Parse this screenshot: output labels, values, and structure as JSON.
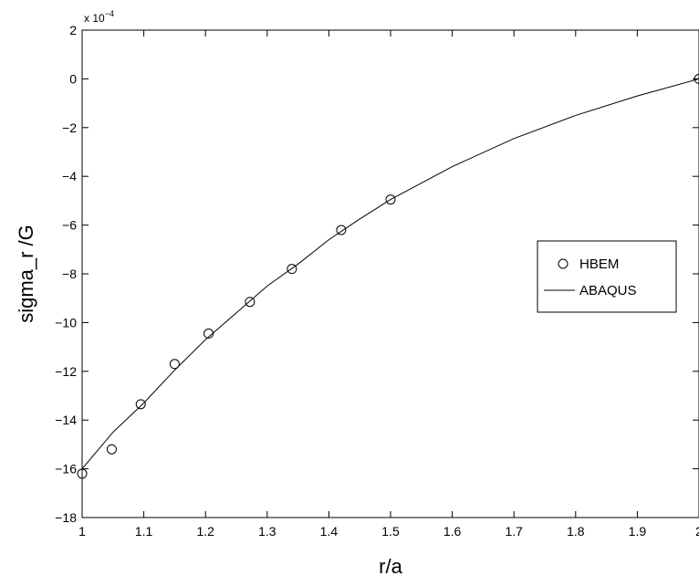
{
  "chart_data": {
    "type": "line",
    "xlabel": "r/a",
    "ylabel": "sigma_r /G",
    "xlim": [
      1,
      2
    ],
    "ylim": [
      -18,
      2
    ],
    "xticks": [
      1,
      1.1,
      1.2,
      1.3,
      1.4,
      1.5,
      1.6,
      1.7,
      1.8,
      1.9,
      2
    ],
    "xtick_labels": [
      "1",
      "1.1",
      "1.2",
      "1.3",
      "1.4",
      "1.5",
      "1.6",
      "1.7",
      "1.8",
      "1.9",
      "2"
    ],
    "yticks": [
      2,
      0,
      -2,
      -4,
      -6,
      -8,
      -10,
      -12,
      -14,
      -16,
      -18
    ],
    "ytick_labels": [
      "2",
      "0",
      "−2",
      "−4",
      "−6",
      "−8",
      "−10",
      "−12",
      "−14",
      "−16",
      "−18"
    ],
    "y_multiplier": {
      "base": "x 10",
      "exponent": "−4"
    },
    "grid": false,
    "legend_position": "right",
    "series": [
      {
        "name": "HBEM",
        "style": "markers",
        "marker": "circle",
        "x": [
          1.0,
          1.048,
          1.095,
          1.15,
          1.205,
          1.272,
          1.34,
          1.42,
          1.5,
          2.0
        ],
        "y": [
          -16.2,
          -15.2,
          -13.35,
          -11.7,
          -10.45,
          -9.15,
          -7.8,
          -6.2,
          -4.95,
          0.0
        ]
      },
      {
        "name": "ABAQUS",
        "style": "line",
        "x": [
          1.0,
          1.02,
          1.05,
          1.1,
          1.15,
          1.2,
          1.25,
          1.3,
          1.35,
          1.4,
          1.45,
          1.5,
          1.6,
          1.7,
          1.8,
          1.9,
          2.0
        ],
        "y": [
          -16.0,
          -15.4,
          -14.5,
          -13.3,
          -11.95,
          -10.7,
          -9.6,
          -8.5,
          -7.6,
          -6.6,
          -5.75,
          -4.95,
          -3.6,
          -2.45,
          -1.5,
          -0.7,
          0.0
        ]
      }
    ]
  }
}
